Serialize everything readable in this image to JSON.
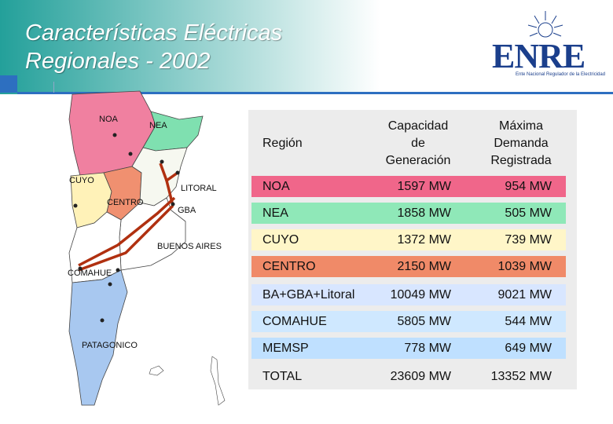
{
  "slide": {
    "title_line1": "Características Eléctricas",
    "title_line2": "Regionales - 2002",
    "logo_text": "ENRE",
    "logo_subtext": "Ente Nacional Regulador de la Electricidad"
  },
  "map": {
    "labels": {
      "noa": "NOA",
      "nea": "NEA",
      "cuyo": "CUYO",
      "litoral": "LITORAL",
      "centro": "CENTRO",
      "gba": "GBA",
      "buenos_aires": "BUENOS AIRES",
      "comahue": "COMAHUE",
      "patagonico": "PATAGONICO"
    }
  },
  "table": {
    "headers": {
      "region": "Región",
      "capacity": [
        "Capacidad",
        "de",
        "Generación"
      ],
      "demand": [
        "Máxima",
        "Demanda",
        "Registrada"
      ]
    },
    "rows": [
      {
        "region": "NOA",
        "capacity": "1597 MW",
        "demand": "954 MW",
        "color": "#f0668a"
      },
      {
        "region": "NEA",
        "capacity": "1858 MW",
        "demand": "505 MW",
        "color": "#8fe8b8"
      },
      {
        "region": "CUYO",
        "capacity": "1372 MW",
        "demand": "739 MW",
        "color": "#fff6c8"
      },
      {
        "region": "CENTRO",
        "capacity": "2150 MW",
        "demand": "1039 MW",
        "color": "#f08a68"
      },
      {
        "region": "BA+GBA+Litoral",
        "capacity": "10049 MW",
        "demand": "9021 MW",
        "color": "#d8e6ff"
      },
      {
        "region": "COMAHUE",
        "capacity": "5805 MW",
        "demand": "544 MW",
        "color": "#cfe8ff"
      },
      {
        "region": "MEMSP",
        "capacity": "778 MW",
        "demand": "649 MW",
        "color": "#bfe0ff"
      },
      {
        "region": "TOTAL",
        "capacity": "23609 MW",
        "demand": "13352 MW",
        "color": "#ececec"
      }
    ]
  }
}
